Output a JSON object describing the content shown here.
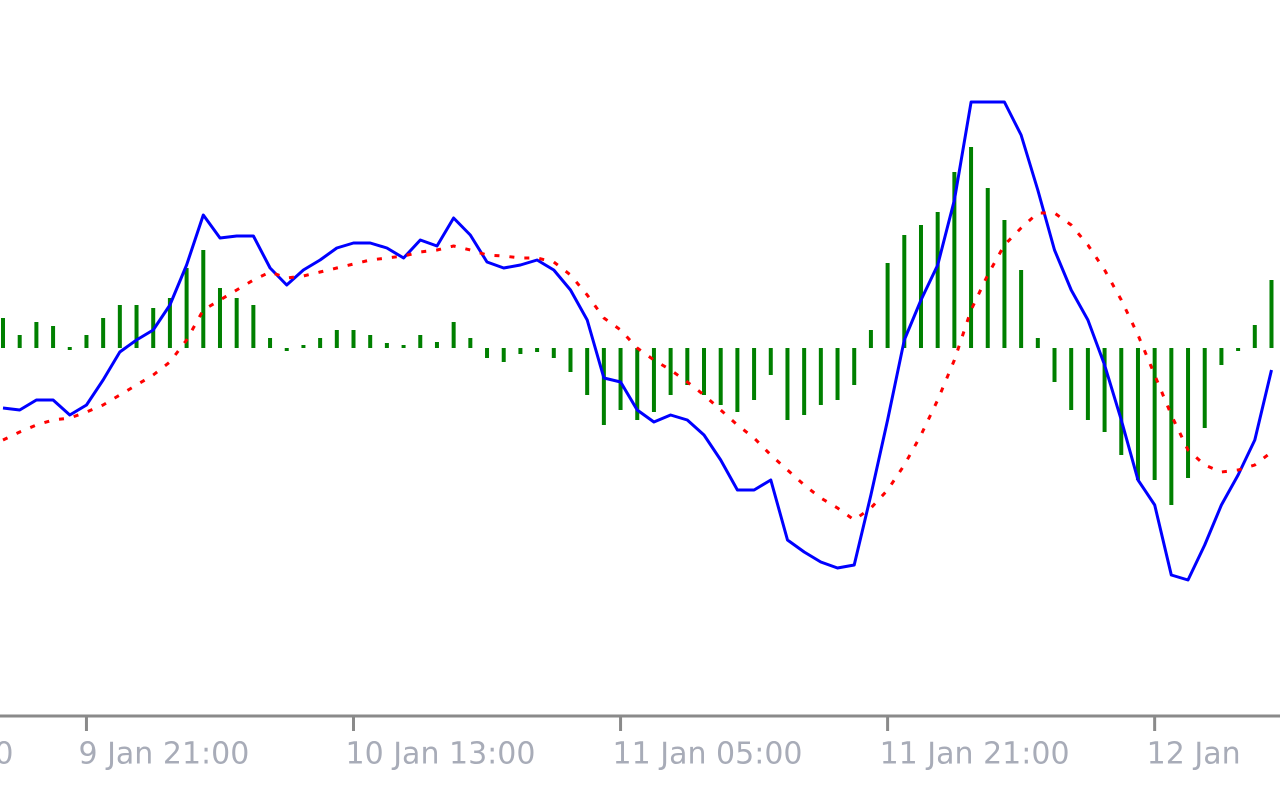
{
  "chart_data": {
    "type": "macd",
    "xlim": [
      -0.18,
      76.51
    ],
    "ylim": [
      -3.67,
      3.48
    ],
    "xticks": [
      {
        "value": -11,
        "label": "0"
      },
      {
        "value": 5,
        "label": "9 Jan 21:00"
      },
      {
        "value": 21,
        "label": "10 Jan 13:00"
      },
      {
        "value": 37,
        "label": "11 Jan 05:00"
      },
      {
        "value": 53,
        "label": "11 Jan 21:00"
      },
      {
        "value": 69,
        "label": "12 Jan"
      }
    ],
    "series": [
      {
        "type": "bar",
        "color": "#008000",
        "values": [
          0.3,
          0.13,
          0.26,
          0.22,
          0.01,
          0.13,
          0.3,
          0.43,
          0.43,
          0.4,
          0.5,
          0.8,
          0.98,
          0.6,
          0.5,
          0.43,
          0.1,
          -0.02,
          0.03,
          0.1,
          0.18,
          0.18,
          0.13,
          0.05,
          0.03,
          0.13,
          0.06,
          0.26,
          0.1,
          -0.1,
          -0.14,
          -0.06,
          -0.04,
          -0.1,
          -0.24,
          -0.47,
          -0.77,
          -0.62,
          -0.72,
          -0.64,
          -0.47,
          -0.37,
          -0.47,
          -0.57,
          -0.64,
          -0.52,
          -0.27,
          -0.72,
          -0.67,
          -0.57,
          -0.52,
          -0.37,
          0.18,
          0.85,
          1.13,
          1.23,
          1.36,
          1.76,
          2.01,
          1.6,
          1.28,
          0.78,
          0.1,
          -0.34,
          -0.62,
          -0.72,
          -0.84,
          -1.07,
          -1.32,
          -1.32,
          -1.57,
          -1.3,
          -0.8,
          -0.17,
          -0.02,
          0.23,
          0.68
        ]
      },
      {
        "type": "line",
        "color": "#0000ff",
        "values": [
          -0.6,
          -0.62,
          -0.52,
          -0.52,
          -0.67,
          -0.57,
          -0.32,
          -0.04,
          0.08,
          0.18,
          0.43,
          0.83,
          1.33,
          1.1,
          1.12,
          1.12,
          0.8,
          0.63,
          0.78,
          0.88,
          1.0,
          1.05,
          1.05,
          1.0,
          0.9,
          1.08,
          1.02,
          1.3,
          1.13,
          0.86,
          0.8,
          0.83,
          0.88,
          0.78,
          0.58,
          0.28,
          -0.3,
          -0.34,
          -0.62,
          -0.74,
          -0.67,
          -0.72,
          -0.87,
          -1.12,
          -1.42,
          -1.42,
          -1.32,
          -1.92,
          -2.04,
          -2.14,
          -2.2,
          -2.17,
          -1.47,
          -0.72,
          0.08,
          0.48,
          0.83,
          1.48,
          2.46,
          2.46,
          2.46,
          2.13,
          1.58,
          0.98,
          0.58,
          0.28,
          -0.17,
          -0.72,
          -1.32,
          -1.57,
          -2.27,
          -2.32,
          -1.97,
          -1.57,
          -1.27,
          -0.92,
          -0.22
        ]
      },
      {
        "type": "line",
        "dashed": true,
        "color": "#ff0000",
        "values": [
          -0.92,
          -0.84,
          -0.77,
          -0.72,
          -0.7,
          -0.64,
          -0.57,
          -0.47,
          -0.37,
          -0.27,
          -0.14,
          0.08,
          0.38,
          0.48,
          0.58,
          0.68,
          0.76,
          0.7,
          0.72,
          0.76,
          0.8,
          0.84,
          0.88,
          0.9,
          0.92,
          0.96,
          0.98,
          1.02,
          0.98,
          0.93,
          0.92,
          0.9,
          0.9,
          0.86,
          0.73,
          0.53,
          0.3,
          0.18,
          0,
          -0.12,
          -0.22,
          -0.34,
          -0.47,
          -0.62,
          -0.77,
          -0.9,
          -1.07,
          -1.22,
          -1.37,
          -1.5,
          -1.6,
          -1.72,
          -1.6,
          -1.42,
          -1.17,
          -0.87,
          -0.52,
          -0.12,
          0.38,
          0.73,
          1.03,
          1.2,
          1.35,
          1.35,
          1.23,
          1.03,
          0.78,
          0.48,
          0.13,
          -0.27,
          -0.67,
          -1.02,
          -1.17,
          -1.24,
          -1.22,
          -1.17,
          -1.04
        ]
      }
    ]
  }
}
